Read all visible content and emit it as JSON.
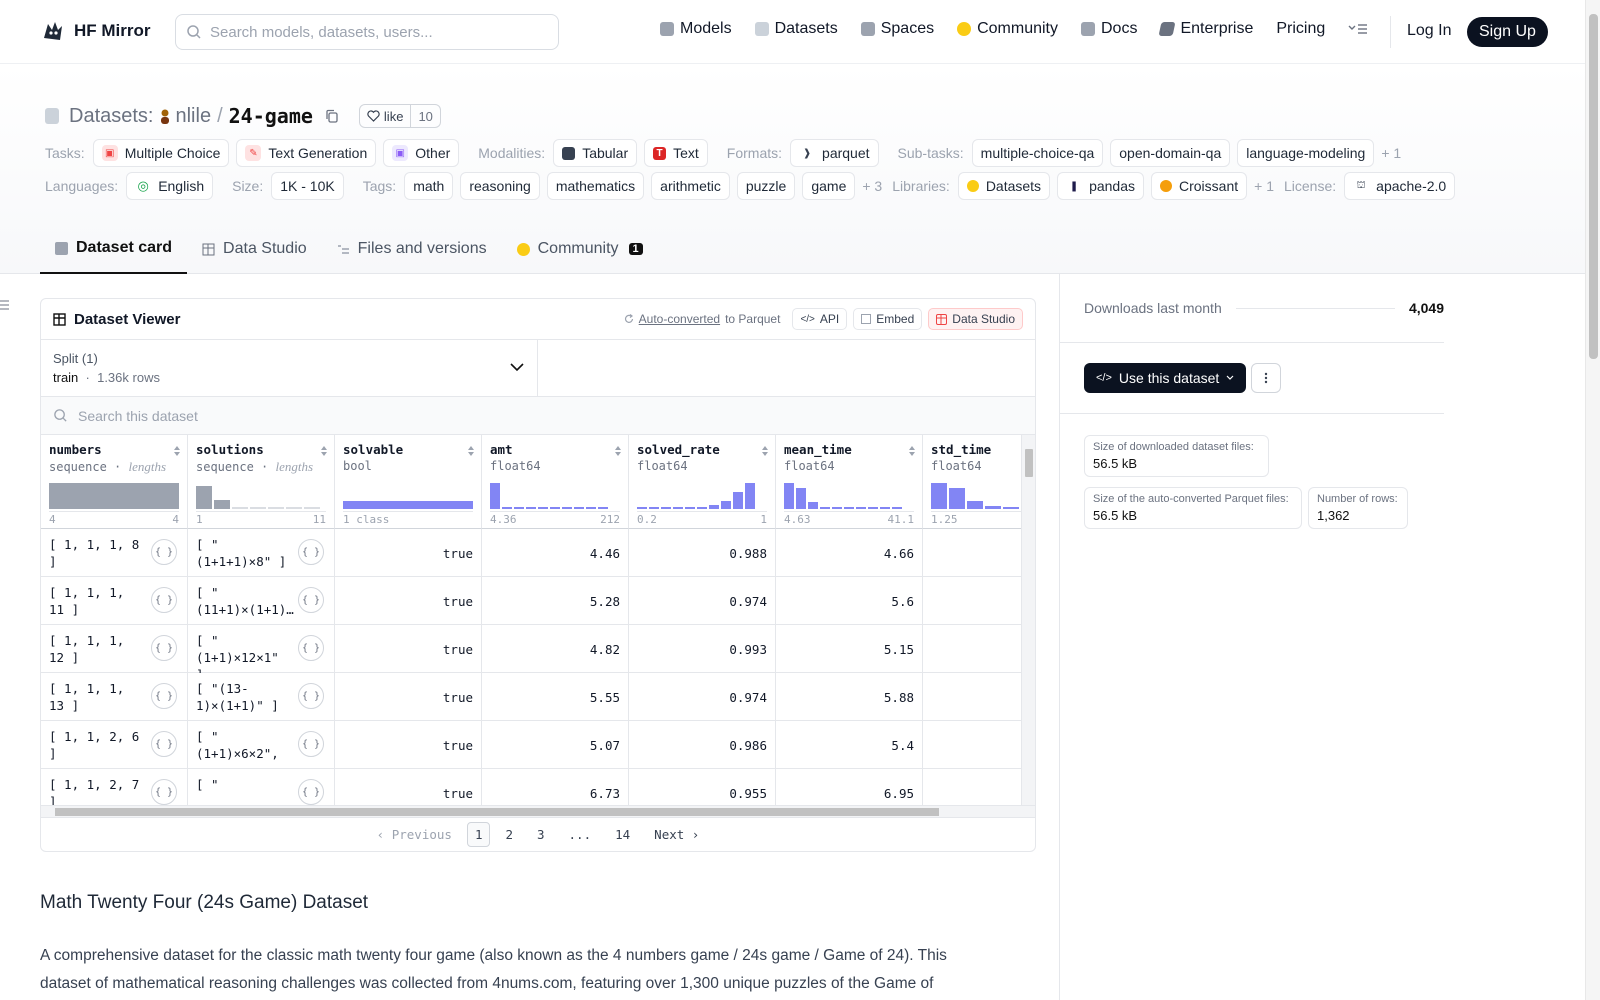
{
  "nav": {
    "brand": "HF Mirror",
    "search_placeholder": "Search models, datasets, users...",
    "links": [
      {
        "label": "Models",
        "icon": "models-icon",
        "color": "#9ca3af"
      },
      {
        "label": "Datasets",
        "icon": "datasets-icon",
        "color": "#cbd2da"
      },
      {
        "label": "Spaces",
        "icon": "spaces-icon",
        "color": "#9ca3af"
      },
      {
        "label": "Community",
        "icon": "community-icon",
        "color": "#facc15"
      },
      {
        "label": "Docs",
        "icon": "docs-icon",
        "color": "#9ca3af"
      },
      {
        "label": "Enterprise",
        "icon": "enterprise-icon",
        "color": "#6b7280"
      }
    ],
    "pricing": "Pricing",
    "login": "Log In",
    "signup": "Sign Up"
  },
  "repo": {
    "type_label": "Datasets:",
    "org": "nlile",
    "name": "24-game",
    "like_label": "like",
    "like_count": "10"
  },
  "meta": {
    "tasks_label": "Tasks:",
    "tasks": [
      "Multiple Choice",
      "Text Generation",
      "Other"
    ],
    "modalities_label": "Modalities:",
    "modalities": [
      "Tabular",
      "Text"
    ],
    "formats_label": "Formats:",
    "formats": [
      "parquet"
    ],
    "subtasks_label": "Sub-tasks:",
    "subtasks": [
      "multiple-choice-qa",
      "open-domain-qa",
      "language-modeling"
    ],
    "subtasks_more": "+ 1",
    "languages_label": "Languages:",
    "languages": [
      "English"
    ],
    "size_label": "Size:",
    "size": "1K - 10K",
    "tags_label": "Tags:",
    "tags": [
      "math",
      "reasoning",
      "mathematics",
      "arithmetic",
      "puzzle",
      "game"
    ],
    "tags_more": "+ 3",
    "libraries_label": "Libraries:",
    "libraries": [
      "Datasets",
      "pandas",
      "Croissant"
    ],
    "libraries_more": "+ 1",
    "license_label": "License:",
    "license": "apache-2.0"
  },
  "tabs": [
    {
      "label": "Dataset card",
      "active": true
    },
    {
      "label": "Data Studio",
      "active": false
    },
    {
      "label": "Files and versions",
      "active": false
    },
    {
      "label": "Community",
      "active": false,
      "badge": "1"
    }
  ],
  "viewer": {
    "title": "Dataset Viewer",
    "auto_converted": "Auto-converted",
    "to_parquet": "to Parquet",
    "api": "API",
    "embed": "Embed",
    "data_studio": "Data Studio",
    "split_label": "Split (1)",
    "split_name": "train",
    "split_rows": "1.36k rows",
    "search_placeholder": "Search this dataset",
    "columns": [
      {
        "name": "numbers",
        "type": "sequence",
        "extra": "lengths",
        "min": "4",
        "max": "4"
      },
      {
        "name": "solutions",
        "type": "sequence",
        "extra": "lengths",
        "min": "1",
        "max": "11"
      },
      {
        "name": "solvable",
        "type": "bool",
        "extra": "",
        "min": "1 class",
        "max": ""
      },
      {
        "name": "amt",
        "type": "float64",
        "extra": "",
        "min": "4.36",
        "max": "212"
      },
      {
        "name": "solved_rate",
        "type": "float64",
        "extra": "",
        "min": "0.2",
        "max": "1"
      },
      {
        "name": "mean_time",
        "type": "float64",
        "extra": "",
        "min": "4.63",
        "max": "41.1"
      },
      {
        "name": "std_time",
        "type": "float64",
        "extra": "",
        "min": "1.25",
        "max": ""
      }
    ],
    "rows": [
      {
        "numbers": "[ 1, 1, 1, 8 ]",
        "solutions": "[ \"(1+1+1)×8\" ]",
        "solvable": "true",
        "amt": "4.46",
        "solved_rate": "0.988",
        "mean_time": "4.66"
      },
      {
        "numbers": "[ 1, 1, 1, 11 ]",
        "solutions": "[ \"(11+1)×(1+1)…",
        "solvable": "true",
        "amt": "5.28",
        "solved_rate": "0.974",
        "mean_time": "5.6"
      },
      {
        "numbers": "[ 1, 1, 1, 12 ]",
        "solutions": "[ \"(1+1)×12×1\" ]",
        "solvable": "true",
        "amt": "4.82",
        "solved_rate": "0.993",
        "mean_time": "5.15"
      },
      {
        "numbers": "[ 1, 1, 1, 13 ]",
        "solutions": "[ \"(13-1)×(1+1)\" ]",
        "solvable": "true",
        "amt": "5.55",
        "solved_rate": "0.974",
        "mean_time": "5.88"
      },
      {
        "numbers": "[ 1, 1, 2, 6 ]",
        "solutions": "[ \"(1+1)×6×2\", …",
        "solvable": "true",
        "amt": "5.07",
        "solved_rate": "0.986",
        "mean_time": "5.4"
      },
      {
        "numbers": "[ 1, 1, 2, 7 ]",
        "solutions": "[ \"",
        "solvable": "true",
        "amt": "6.73",
        "solved_rate": "0.955",
        "mean_time": "6.95"
      }
    ],
    "pager": {
      "prev": "Previous",
      "pages": [
        "1",
        "2",
        "3",
        "...",
        "14"
      ],
      "next": "Next"
    }
  },
  "card": {
    "heading": "Math Twenty Four (24s Game) Dataset",
    "paragraph": "A comprehensive dataset for the classic math twenty four game (also known as the 4 numbers game / 24s game / Game of 24). This dataset of mathematical reasoning challenges was collected from 4nums.com, featuring over 1,300 unique puzzles of the Game of"
  },
  "sidebar": {
    "downloads_label": "Downloads last month",
    "downloads": "4,049",
    "use_dataset": "Use this dataset",
    "stats": [
      {
        "label": "Size of downloaded dataset files:",
        "value": "56.5 kB"
      },
      {
        "label": "Size of the auto-converted Parquet files:",
        "value": "56.5 kB"
      },
      {
        "label": "Number of rows:",
        "value": "1,362"
      }
    ]
  }
}
